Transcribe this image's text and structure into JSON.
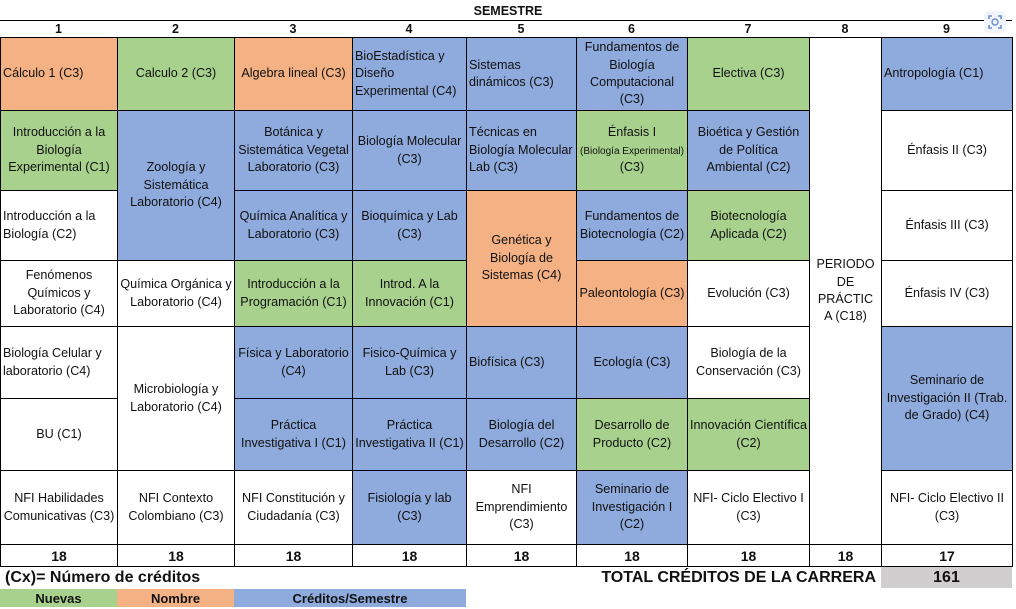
{
  "header": {
    "title": "SEMESTRE",
    "semesters": [
      "1",
      "2",
      "3",
      "4",
      "5",
      "6",
      "7",
      "8",
      "9"
    ]
  },
  "colors": {
    "nuevas": "#a9d18e",
    "nombre": "#f4b183",
    "creditos_semestre": "#8faadc",
    "blank": "#ffffff",
    "total_box": "#d0cece"
  },
  "courses": [
    {
      "sem": 1,
      "color": "orange",
      "text": "Cálculo  1 (C3)"
    },
    {
      "sem": 1,
      "color": "green",
      "text": "Introducción a la Biología Experimental (C1)"
    },
    {
      "sem": 1,
      "color": "white",
      "text": "Introducción a la Biología (C2)"
    },
    {
      "sem": 1,
      "color": "white",
      "text": "Fenómenos Químicos y Laboratorio (C4)"
    },
    {
      "sem": 1,
      "color": "white",
      "text": "Biología Celular y laboratorio (C4)"
    },
    {
      "sem": 1,
      "color": "white",
      "text": "BU (C1)"
    },
    {
      "sem": 1,
      "color": "white",
      "text": "NFI Habilidades Comunicativas (C3)"
    },
    {
      "sem": 2,
      "color": "green",
      "text": "Calculo 2 (C3)"
    },
    {
      "sem": 2,
      "color": "blue",
      "text": "Zoología y Sistemática Laboratorio  (C4)"
    },
    {
      "sem": 2,
      "color": "white",
      "text": "Química Orgánica y Laboratorio (C4)"
    },
    {
      "sem": 2,
      "color": "white",
      "text": "Microbiología y Laboratorio (C4)"
    },
    {
      "sem": 2,
      "color": "white",
      "text": "NFI Contexto Colombiano (C3)"
    },
    {
      "sem": 3,
      "color": "orange",
      "text": "Algebra lineal (C3)"
    },
    {
      "sem": 3,
      "color": "blue",
      "text": "Botánica y Sistemática Vegetal Laboratorio (C3)"
    },
    {
      "sem": 3,
      "color": "blue",
      "text": "Química Analítica y Laboratorio (C3)"
    },
    {
      "sem": 3,
      "color": "green",
      "text": "Introducción a la Programación (C1)"
    },
    {
      "sem": 3,
      "color": "blue",
      "text": "Física y Laboratorio (C4)"
    },
    {
      "sem": 3,
      "color": "blue",
      "text": "Práctica Investigativa I (C1)"
    },
    {
      "sem": 3,
      "color": "white",
      "text": "NFI Constitución y Ciudadanía (C3)"
    },
    {
      "sem": 4,
      "color": "blue",
      "text": "BioEstadística y Diseño Experimental (C4)"
    },
    {
      "sem": 4,
      "color": "blue",
      "text": "Biología Molecular (C3)"
    },
    {
      "sem": 4,
      "color": "blue",
      "text": "Bioquímica y Lab    (C3)"
    },
    {
      "sem": 4,
      "color": "green",
      "text": "Introd. A la Innovación (C1)"
    },
    {
      "sem": 4,
      "color": "blue",
      "text": "Fisico-Química y Lab (C3)"
    },
    {
      "sem": 4,
      "color": "blue",
      "text": "Práctica Investigativa II (C1)"
    },
    {
      "sem": 4,
      "color": "blue",
      "text": "Fisiología y lab (C3)"
    },
    {
      "sem": 5,
      "color": "blue",
      "text": "Sistemas dinámicos (C3)"
    },
    {
      "sem": 5,
      "color": "blue",
      "text": "Técnicas en Biología Molecular Lab (C3)"
    },
    {
      "sem": 5,
      "color": "orange",
      "text": "Genética y Biología de Sistemas  (C4)"
    },
    {
      "sem": 5,
      "color": "blue",
      "text": "Biofísica    (C3)"
    },
    {
      "sem": 5,
      "color": "blue",
      "text": "Biología del Desarrollo (C2)"
    },
    {
      "sem": 5,
      "color": "white",
      "text": "NFI Emprendimiento (C3)"
    },
    {
      "sem": 6,
      "color": "blue",
      "text": "Fundamentos de Biología Computacional (C3)"
    },
    {
      "sem": 6,
      "color": "green",
      "text": "Énfasis I",
      "small": "(Biología Experimental)",
      "tail": "(C3)"
    },
    {
      "sem": 6,
      "color": "blue",
      "text": "Fundamentos de Biotecnología (C2)"
    },
    {
      "sem": 6,
      "color": "orange",
      "text": "Paleontología (C3)"
    },
    {
      "sem": 6,
      "color": "blue",
      "text": "Ecología (C3)"
    },
    {
      "sem": 6,
      "color": "green",
      "text": "Desarrollo de Producto (C2)"
    },
    {
      "sem": 6,
      "color": "blue",
      "text": "Seminario de Investigación I (C2)"
    },
    {
      "sem": 7,
      "color": "green",
      "text": "Electiva (C3)"
    },
    {
      "sem": 7,
      "color": "blue",
      "text": "Bioética y Gestión de Política Ambiental (C2)"
    },
    {
      "sem": 7,
      "color": "green",
      "text": "Biotecnología Aplicada  (C2)"
    },
    {
      "sem": 7,
      "color": "white",
      "text": "Evolución (C3)"
    },
    {
      "sem": 7,
      "color": "white",
      "text": "Biología de la Conservación (C3)"
    },
    {
      "sem": 7,
      "color": "green",
      "text": "Innovación Científica (C2)"
    },
    {
      "sem": 7,
      "color": "white",
      "text": "NFI- Ciclo Electivo I (C3)"
    },
    {
      "sem": 8,
      "color": "white",
      "text": "PERIODO DE PRÁCTIC A  (C18)"
    },
    {
      "sem": 9,
      "color": "blue",
      "text": "Antropología (C1)"
    },
    {
      "sem": 9,
      "color": "white",
      "text": "Énfasis II (C3)"
    },
    {
      "sem": 9,
      "color": "white",
      "text": "Énfasis III (C3)"
    },
    {
      "sem": 9,
      "color": "white",
      "text": "Énfasis IV (C3)"
    },
    {
      "sem": 9,
      "color": "blue",
      "text": "Seminario de Investigación II (Trab. de Grado) (C4)"
    },
    {
      "sem": 9,
      "color": "white",
      "text": "NFI- Ciclo Electivo II (C3)"
    }
  ],
  "totals": [
    "18",
    "18",
    "18",
    "18",
    "18",
    "18",
    "18",
    "18",
    "17"
  ],
  "footer": {
    "credits_note": "(Cx)= Número de créditos",
    "total_label": "TOTAL CRÉDITOS DE LA CARRERA",
    "total_value": "161"
  },
  "legend": {
    "nuevas": "Nuevas",
    "nombre": "Nombre",
    "creditos": "Créditos/Semestre"
  },
  "icons": {
    "corner": "expand-icon"
  }
}
